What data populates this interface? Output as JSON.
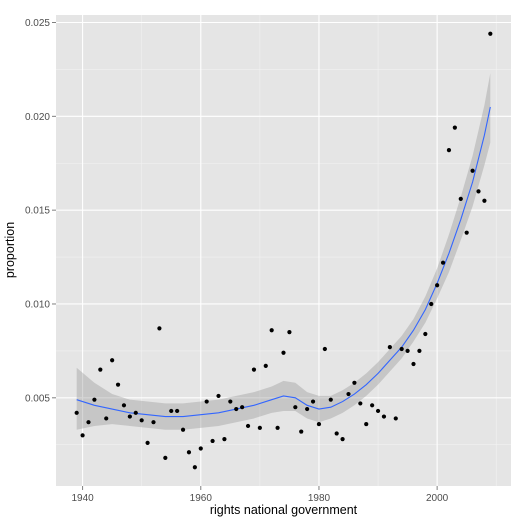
{
  "chart_data": {
    "type": "scatter",
    "title": "",
    "xlabel": "rights national government",
    "ylabel": "proportion",
    "xlim": [
      1935.5,
      2012.5
    ],
    "ylim": [
      0.0003,
      0.0254
    ],
    "x_ticks": [
      1940,
      1960,
      1980,
      2000
    ],
    "x_tick_labels": [
      "1940",
      "1960",
      "1980",
      "2000"
    ],
    "y_ticks": [
      0.005,
      0.01,
      0.015,
      0.02,
      0.025
    ],
    "y_tick_labels": [
      "0.005",
      "0.010",
      "0.015",
      "0.020",
      "0.025"
    ],
    "grid": true,
    "legend": "none",
    "colors": {
      "panel": "#e5e5e5",
      "grid_major": "#ffffff",
      "grid_minor": "#f2f2f2",
      "points": "#000000",
      "smooth_line": "#3366ff",
      "ribbon": "#999999"
    },
    "series": [
      {
        "type": "points",
        "x": [
          1939,
          1940,
          1941,
          1942,
          1943,
          1944,
          1945,
          1946,
          1947,
          1948,
          1949,
          1950,
          1951,
          1952,
          1953,
          1954,
          1955,
          1956,
          1957,
          1958,
          1959,
          1960,
          1961,
          1962,
          1963,
          1964,
          1965,
          1966,
          1967,
          1968,
          1969,
          1970,
          1971,
          1972,
          1973,
          1974,
          1975,
          1976,
          1977,
          1978,
          1979,
          1980,
          1981,
          1982,
          1983,
          1984,
          1985,
          1986,
          1987,
          1988,
          1989,
          1990,
          1991,
          1992,
          1993,
          1994,
          1995,
          1996,
          1997,
          1998,
          1999,
          2000,
          2001,
          2002,
          2003,
          2004,
          2005,
          2006,
          2007,
          2008,
          2009
        ],
        "y": [
          0.0042,
          0.003,
          0.0037,
          0.0049,
          0.0065,
          0.0039,
          0.007,
          0.0057,
          0.0046,
          0.004,
          0.0042,
          0.0038,
          0.0026,
          0.0037,
          0.0087,
          0.0018,
          0.0043,
          0.0043,
          0.0033,
          0.0021,
          0.0013,
          0.0023,
          0.0048,
          0.0027,
          0.0051,
          0.0028,
          0.0048,
          0.0044,
          0.0045,
          0.0035,
          0.0065,
          0.0034,
          0.0067,
          0.0086,
          0.0034,
          0.0074,
          0.0085,
          0.0045,
          0.0032,
          0.0044,
          0.0048,
          0.0036,
          0.0076,
          0.0049,
          0.0031,
          0.0028,
          0.0052,
          0.0058,
          0.0047,
          0.0036,
          0.0046,
          0.0043,
          0.004,
          0.0077,
          0.0039,
          0.0076,
          0.0075,
          0.0068,
          0.0075,
          0.0084,
          0.01,
          0.011,
          0.0122,
          0.0182,
          0.0194,
          0.0156,
          0.0138,
          0.0171,
          0.016,
          0.0155,
          0.0244
        ]
      },
      {
        "type": "smooth",
        "x": [
          1939,
          1942,
          1945,
          1948,
          1951,
          1954,
          1957,
          1960,
          1963,
          1966,
          1969,
          1972,
          1974,
          1976,
          1978,
          1980,
          1982,
          1984,
          1986,
          1988,
          1990,
          1992,
          1994,
          1996,
          1998,
          2000,
          2002,
          2004,
          2006,
          2008,
          2009
        ],
        "y": [
          0.0049,
          0.0046,
          0.0044,
          0.0042,
          0.0041,
          0.004,
          0.004,
          0.0041,
          0.0042,
          0.0044,
          0.0046,
          0.0049,
          0.0051,
          0.005,
          0.0046,
          0.0044,
          0.0045,
          0.0048,
          0.0052,
          0.0057,
          0.0063,
          0.007,
          0.0077,
          0.0086,
          0.0097,
          0.0111,
          0.0127,
          0.0145,
          0.0165,
          0.019,
          0.0205
        ],
        "lower": [
          0.0033,
          0.0035,
          0.0036,
          0.0035,
          0.0034,
          0.0033,
          0.0033,
          0.0034,
          0.0035,
          0.0037,
          0.0039,
          0.0042,
          0.0043,
          0.0043,
          0.0039,
          0.0037,
          0.0039,
          0.0042,
          0.0046,
          0.0051,
          0.0057,
          0.0064,
          0.0071,
          0.008,
          0.009,
          0.0103,
          0.0117,
          0.0134,
          0.0152,
          0.0174,
          0.0186
        ],
        "upper": [
          0.0066,
          0.0058,
          0.0052,
          0.0049,
          0.0048,
          0.0047,
          0.0047,
          0.0048,
          0.0049,
          0.0051,
          0.0053,
          0.0056,
          0.0059,
          0.0058,
          0.0053,
          0.0051,
          0.0051,
          0.0054,
          0.0058,
          0.0063,
          0.0069,
          0.0076,
          0.0083,
          0.0092,
          0.0104,
          0.0119,
          0.0137,
          0.0157,
          0.0179,
          0.0206,
          0.0223
        ]
      }
    ]
  }
}
